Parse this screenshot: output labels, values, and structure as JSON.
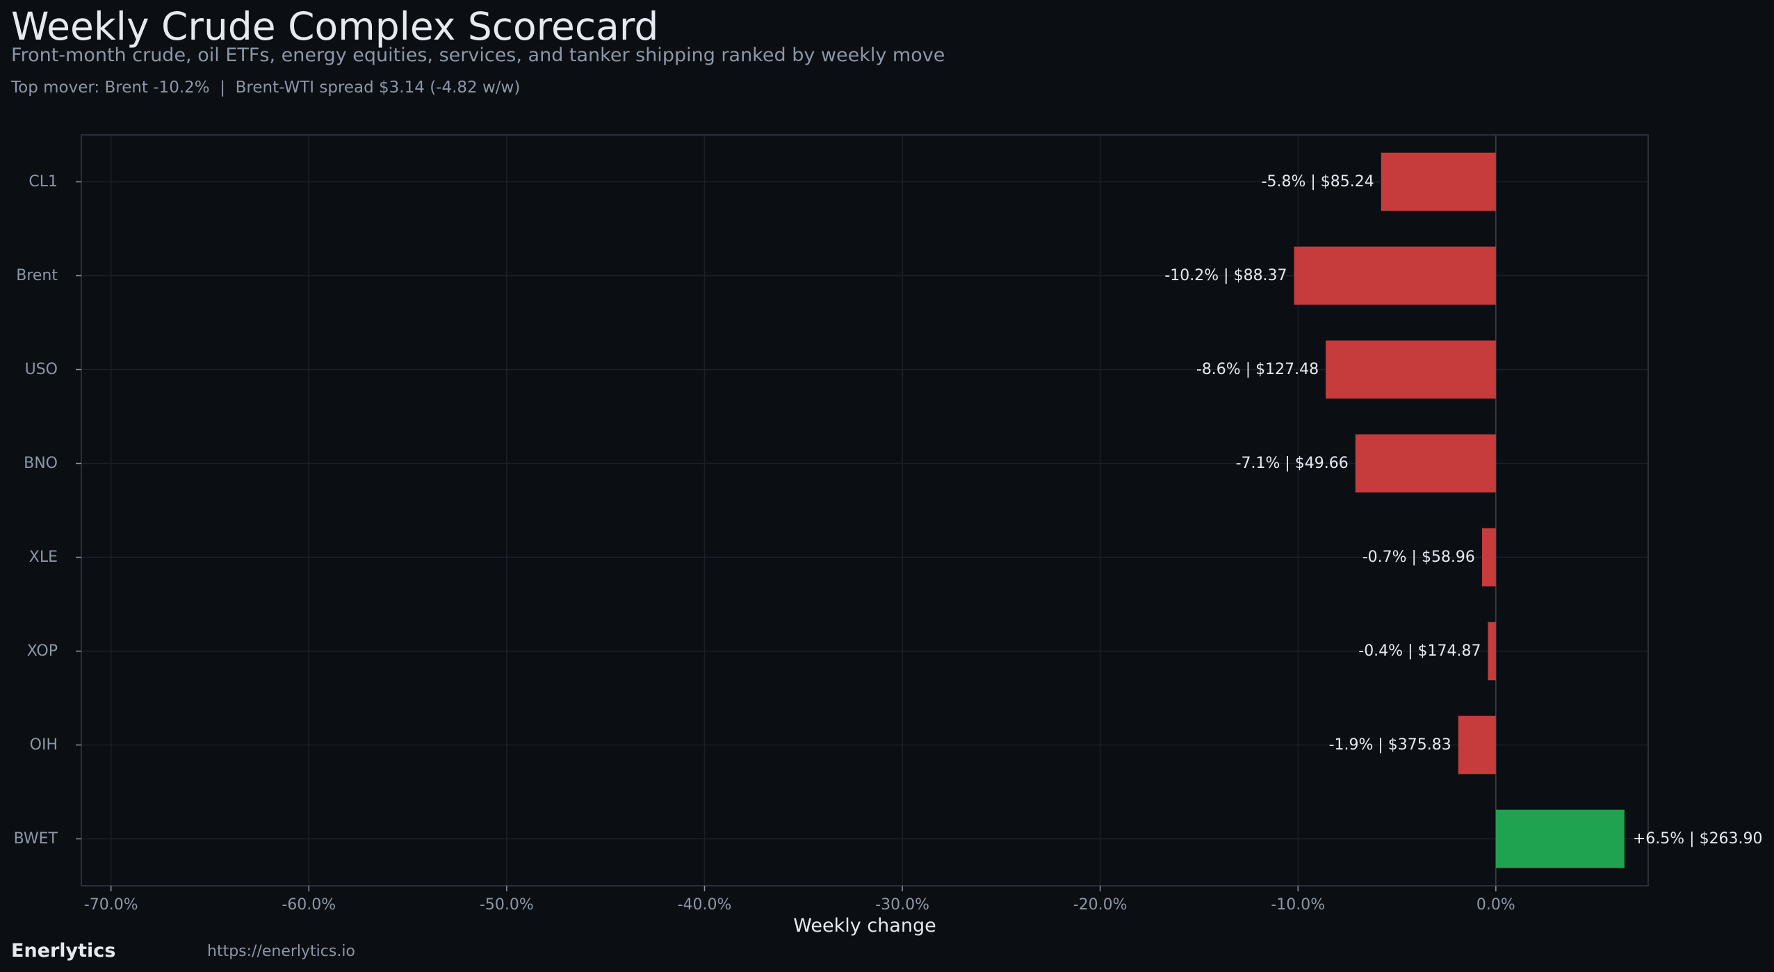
{
  "header": {
    "title": "Weekly Crude Complex Scorecard",
    "subtitle": "Front-month crude, oil ETFs, energy equities, services, and tanker shipping ranked by weekly move",
    "stats": "Top mover: Brent -10.2%  |  Brent-WTI spread $3.14 (-4.82 w/w)"
  },
  "footer": {
    "brand": "Enerlytics",
    "url": "https://enerlytics.io"
  },
  "colors": {
    "background": "#0b0e13",
    "plot_background": "#0b0e13",
    "grid": "#1c2129",
    "frame": "#2a303a",
    "negative": "#c63b3c",
    "positive": "#1fa350",
    "tick_label": "#8c97a6",
    "text": "#e6e9ef"
  },
  "chart_data": {
    "type": "bar",
    "orientation": "horizontal",
    "categories": [
      "CL1",
      "Brent",
      "USO",
      "BNO",
      "XLE",
      "XOP",
      "OIH",
      "BWET"
    ],
    "values": [
      -5.8,
      -10.2,
      -8.6,
      -7.1,
      -0.7,
      -0.4,
      -1.9,
      6.5
    ],
    "data_labels": [
      "-5.8% | $85.24",
      "-10.2% | $88.37",
      "-8.6% | $127.48",
      "-7.1% | $49.66",
      "-0.7% | $58.96",
      "-0.4% | $174.87",
      "-1.9% | $375.83",
      "+6.5% | $263.90"
    ],
    "xlabel": "Weekly change",
    "ylabel": "",
    "xlim": [
      -71.5,
      7.7
    ],
    "xticks": [
      -70,
      -60,
      -50,
      -40,
      -30,
      -20,
      -10,
      0
    ],
    "xtick_labels": [
      "-70.0%",
      "-60.0%",
      "-50.0%",
      "-40.0%",
      "-30.0%",
      "-20.0%",
      "-10.0%",
      "0.0%"
    ],
    "grid": true,
    "legend": "none"
  }
}
